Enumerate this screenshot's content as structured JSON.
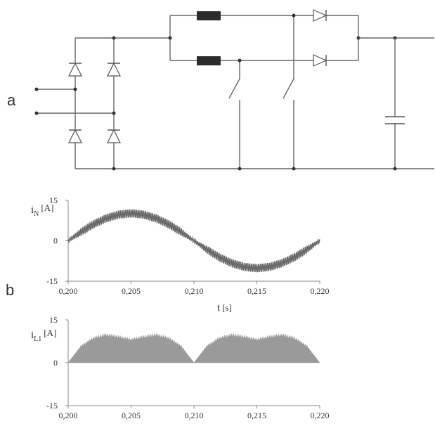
{
  "panels": {
    "a_label": "a",
    "b_label": "b"
  },
  "chart_data": [
    {
      "type": "line",
      "series": [
        {
          "x": [
            0.2,
            0.201,
            0.202,
            0.203,
            0.204,
            0.205,
            0.206,
            0.207,
            0.208,
            0.209,
            0.21,
            0.211,
            0.212,
            0.213,
            0.214,
            0.215,
            0.216,
            0.217,
            0.218,
            0.219,
            0.22
          ],
          "y": [
            0,
            3.2,
            6.1,
            8.3,
            9.7,
            10.2,
            9.7,
            8.3,
            6.1,
            3.2,
            0,
            -3.2,
            -6.1,
            -8.3,
            -9.7,
            -10.2,
            -9.7,
            -8.3,
            -6.1,
            -3.2,
            0
          ],
          "ripple": 3.0
        }
      ],
      "ylabel": {
        "symbol": "i",
        "sub": "N",
        "unit": "[A]"
      },
      "xlabel": {
        "symbol": "t",
        "unit": "[s]"
      },
      "xlim": [
        0.2,
        0.22
      ],
      "ylim": [
        -15,
        15
      ],
      "xticks": [
        "0,200",
        "0,205",
        "0,210",
        "0,215",
        "0,220"
      ],
      "yticks": [
        "15",
        "0",
        "-15"
      ],
      "grid": false,
      "color": "#6a6a6a"
    },
    {
      "type": "area",
      "series": [
        {
          "x": [
            0.2,
            0.201,
            0.202,
            0.203,
            0.204,
            0.205,
            0.206,
            0.207,
            0.208,
            0.209,
            0.21,
            0.211,
            0.212,
            0.213,
            0.214,
            0.215,
            0.216,
            0.217,
            0.218,
            0.219,
            0.22
          ],
          "y": [
            0,
            6,
            9,
            10.2,
            9.5,
            8.5,
            9.5,
            10.2,
            9,
            6,
            0,
            6,
            9,
            10.2,
            9.5,
            8.5,
            9.5,
            10.2,
            9,
            6,
            0
          ]
        }
      ],
      "ylabel": {
        "symbol": "i",
        "sub": "L1",
        "unit": "[A]"
      },
      "xlim": [
        0.2,
        0.22
      ],
      "ylim": [
        -15,
        15
      ],
      "xticks": [
        "0,200",
        "0,205",
        "0,210",
        "0,215",
        "0,220"
      ],
      "yticks": [
        "15",
        "0",
        "-15"
      ],
      "grid": false,
      "color": "#9a9a9a"
    }
  ]
}
